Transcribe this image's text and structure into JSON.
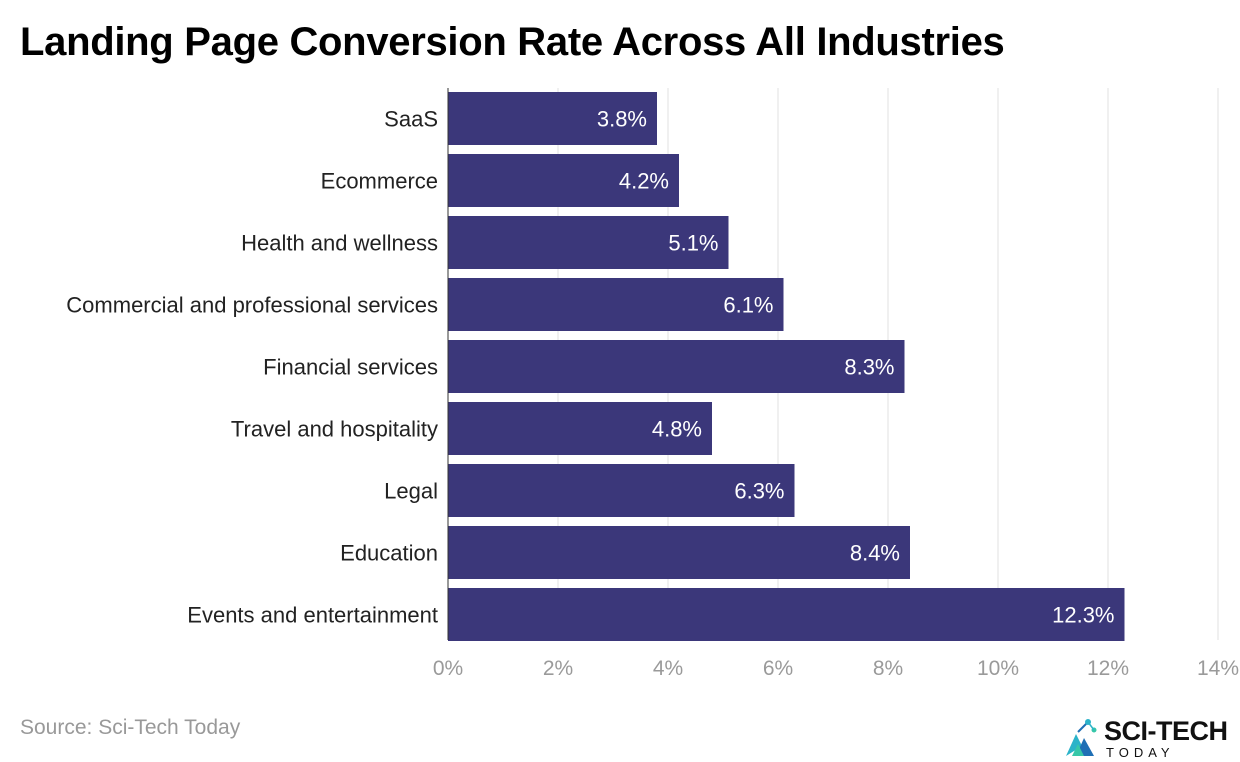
{
  "page": {
    "title": "Landing Page Conversion Rate Across All Industries",
    "source": "Source: Sci-Tech Today"
  },
  "brand": {
    "name": "SCI-TECH",
    "sub": "TODAY",
    "icon": "sci-tech-logo-icon"
  },
  "colors": {
    "bar": "#3b377a",
    "grid": "#e0e0e0",
    "axis_text": "#9a9a9a",
    "label_text": "#222222",
    "value_text": "#ffffff"
  },
  "chart_data": {
    "type": "bar",
    "orientation": "horizontal",
    "title": "Landing Page Conversion Rate Across All Industries",
    "xlabel": "",
    "ylabel": "",
    "categories": [
      "SaaS",
      "Ecommerce",
      "Health and wellness",
      "Commercial and professional services",
      "Financial services",
      "Travel and hospitality",
      "Legal",
      "Education",
      "Events and entertainment"
    ],
    "values": [
      3.8,
      4.2,
      5.1,
      6.1,
      8.3,
      4.8,
      6.3,
      8.4,
      12.3
    ],
    "value_labels": [
      "3.8%",
      "4.2%",
      "5.1%",
      "6.1%",
      "8.3%",
      "4.8%",
      "6.3%",
      "8.4%",
      "12.3%"
    ],
    "xlim": [
      0,
      14
    ],
    "xticks": [
      0,
      2,
      4,
      6,
      8,
      10,
      12,
      14
    ],
    "xtick_labels": [
      "0%",
      "2%",
      "4%",
      "6%",
      "8%",
      "10%",
      "12%",
      "14%"
    ],
    "grid": true,
    "legend": "none"
  }
}
